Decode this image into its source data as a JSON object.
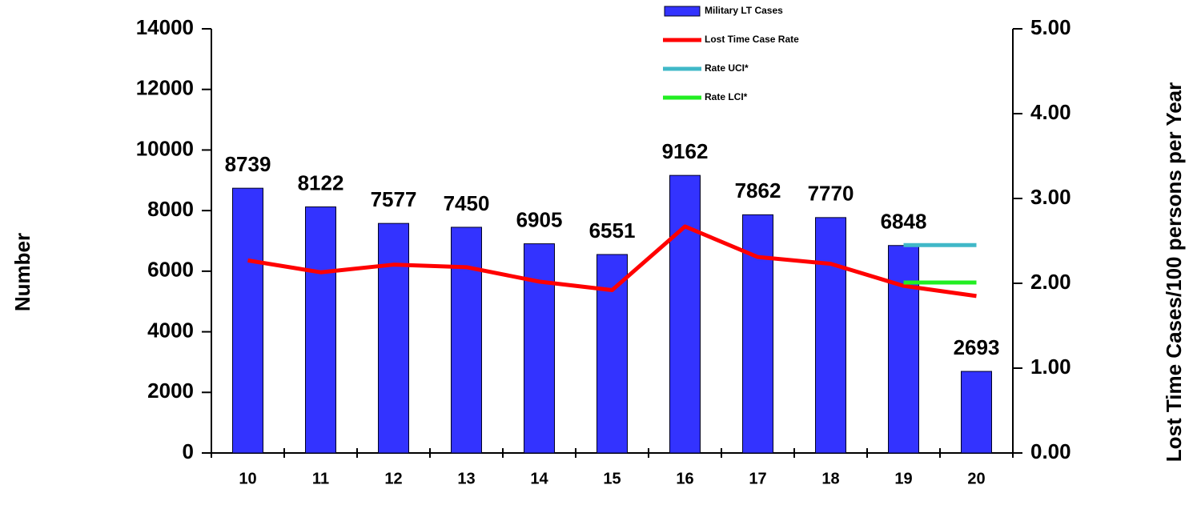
{
  "chart_data": {
    "type": "bar",
    "categories": [
      "10",
      "11",
      "12",
      "13",
      "14",
      "15",
      "16",
      "17",
      "18",
      "19",
      "20"
    ],
    "ylabel": "Number",
    "y2label": "Lost Time Cases/100 persons per Year",
    "ylim": [
      0,
      14000
    ],
    "yticks": [
      0,
      2000,
      4000,
      6000,
      8000,
      10000,
      12000,
      14000
    ],
    "y2lim": [
      0,
      5
    ],
    "y2ticks": [
      {
        "value": 0,
        "label": "0.00"
      },
      {
        "value": 1,
        "label": "1.00"
      },
      {
        "value": 2,
        "label": "2.00"
      },
      {
        "value": 3,
        "label": "3.00"
      },
      {
        "value": 4,
        "label": "4.00"
      },
      {
        "value": 5,
        "label": "5.00"
      }
    ],
    "series": [
      {
        "name": "Military LT Cases",
        "type": "bar",
        "color": "#3333ff",
        "values": [
          8739,
          8122,
          7577,
          7450,
          6905,
          6551,
          9162,
          7862,
          7770,
          6848,
          2693
        ]
      },
      {
        "name": "Lost Time Case Rate",
        "type": "line",
        "axis": "y2",
        "color": "#ff0000",
        "values": [
          2.27,
          2.13,
          2.22,
          2.19,
          2.02,
          1.92,
          2.67,
          2.31,
          2.23,
          1.97,
          1.85
        ]
      },
      {
        "name": "Rate UCI*",
        "type": "line",
        "axis": "y2",
        "color": "#40b8c8",
        "values": [
          null,
          null,
          null,
          null,
          null,
          null,
          null,
          null,
          null,
          2.45,
          2.45
        ]
      },
      {
        "name": "Rate LCI*",
        "type": "line",
        "axis": "y2",
        "color": "#22ee22",
        "values": [
          null,
          null,
          null,
          null,
          null,
          null,
          null,
          null,
          null,
          2.01,
          2.01
        ]
      }
    ]
  }
}
